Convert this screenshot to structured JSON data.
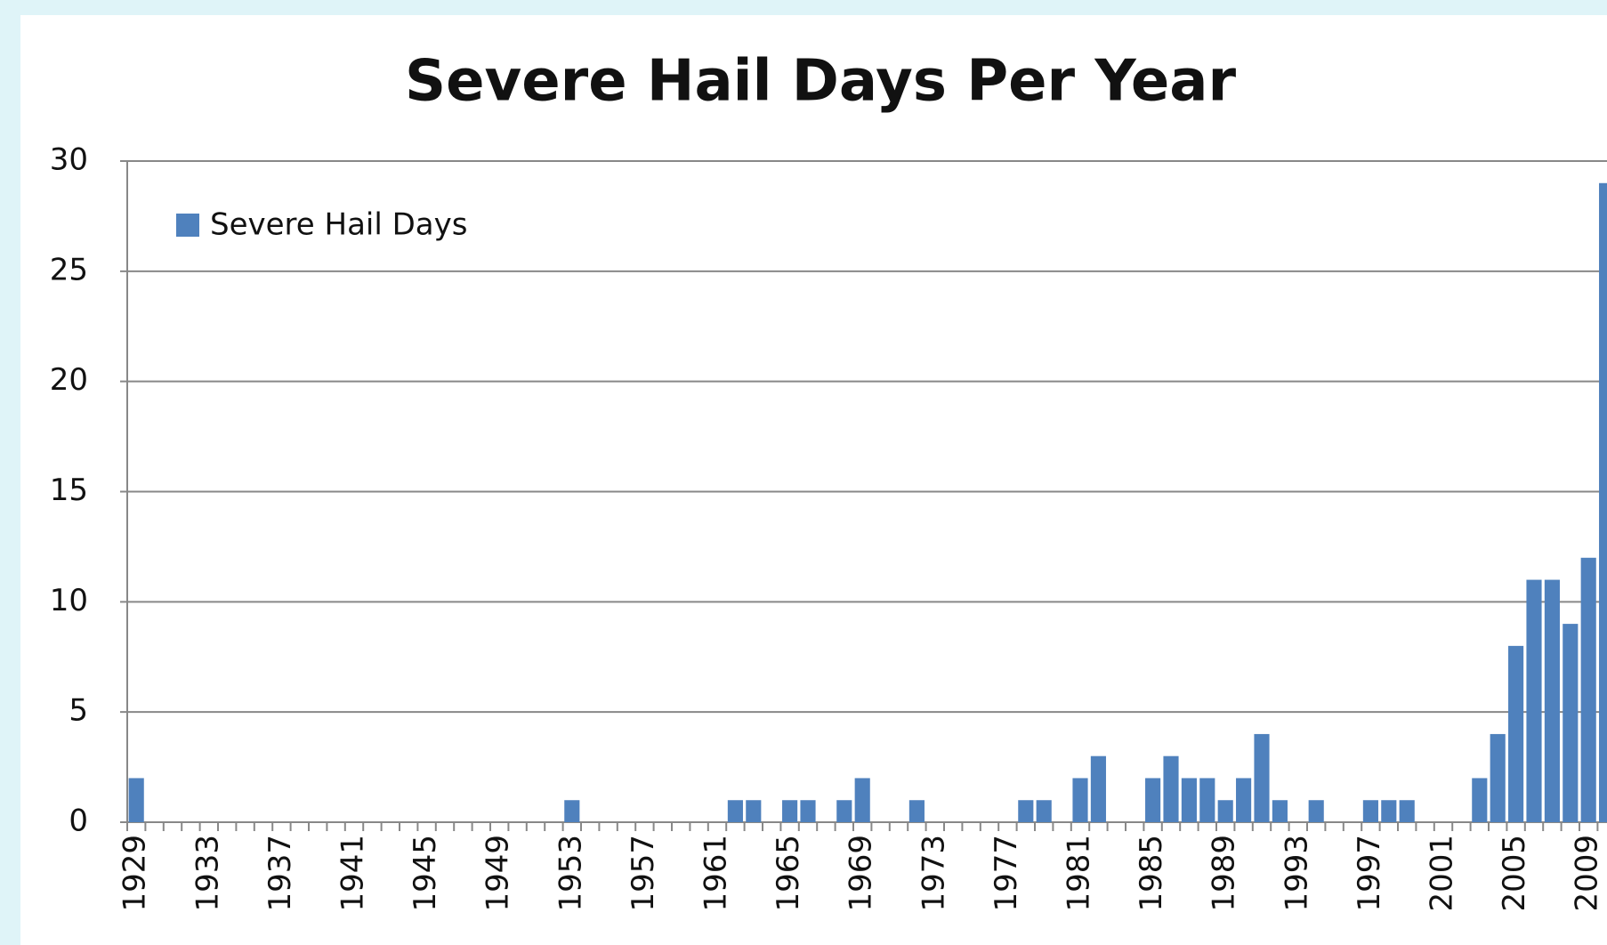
{
  "chart_data": {
    "type": "bar",
    "title": "Severe Hail Days Per Year",
    "categories": [
      "1929",
      null,
      null,
      null,
      "1933",
      null,
      null,
      null,
      "1937",
      null,
      null,
      null,
      "1941",
      null,
      null,
      null,
      "1945",
      null,
      null,
      null,
      "1949",
      null,
      null,
      null,
      "1953",
      null,
      null,
      null,
      "1957",
      null,
      null,
      null,
      "1961",
      null,
      null,
      null,
      "1965",
      null,
      null,
      null,
      "1969",
      null,
      null,
      null,
      "1973",
      null,
      null,
      null,
      "1977",
      null,
      null,
      null,
      "1981",
      null,
      null,
      null,
      "1985",
      null,
      null,
      null,
      "1989",
      null,
      null,
      null,
      "1993",
      null,
      null,
      null,
      "1997",
      null,
      null,
      null,
      "2001",
      null,
      null,
      null,
      "2005",
      null,
      null,
      null,
      "2009",
      null
    ],
    "series": [
      {
        "name": "Severe Hail Days",
        "color": "#4f81bd",
        "values": [
          2,
          0,
          0,
          0,
          0,
          0,
          0,
          0,
          0,
          0,
          0,
          0,
          0,
          0,
          0,
          0,
          0,
          0,
          0,
          0,
          0,
          0,
          0,
          0,
          1,
          0,
          0,
          0,
          0,
          0,
          0,
          0,
          0,
          1,
          1,
          0,
          1,
          1,
          0,
          1,
          2,
          0,
          0,
          1,
          0,
          0,
          0,
          0,
          0,
          1,
          1,
          0,
          2,
          3,
          0,
          0,
          2,
          3,
          2,
          2,
          1,
          2,
          4,
          1,
          0,
          1,
          0,
          0,
          1,
          1,
          1,
          0,
          0,
          0,
          2,
          4,
          8,
          11,
          11,
          9,
          12,
          29
        ]
      }
    ],
    "ylim": [
      0,
      30
    ],
    "yticks": [
      0,
      5,
      10,
      15,
      20,
      25,
      30
    ],
    "grid": true,
    "legend": "top-left"
  }
}
